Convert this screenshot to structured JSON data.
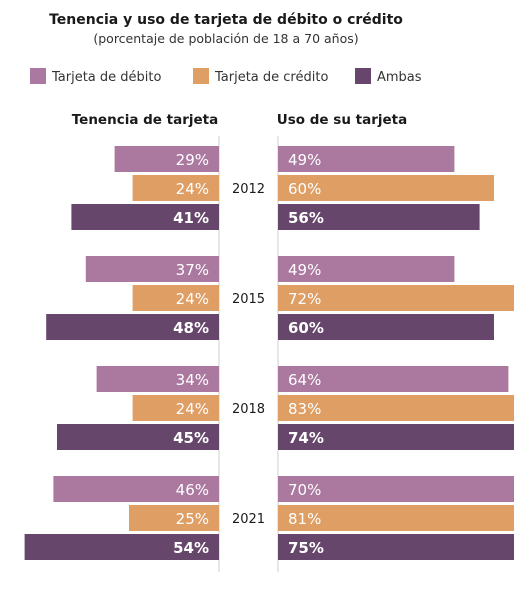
{
  "chart_data": {
    "type": "bar",
    "title": "Tenencia y uso de tarjeta de débito o crédito",
    "subtitle": "(porcentaje de población de 18 a 70 años)",
    "orientation": "horizontal-butterfly",
    "categories": [
      "2012",
      "2015",
      "2018",
      "2021"
    ],
    "panels": [
      {
        "key": "tenencia",
        "title": "Tenencia de tarjeta",
        "direction": "left",
        "xlim": [
          0,
          100
        ]
      },
      {
        "key": "uso",
        "title": "Uso de su tarjeta",
        "direction": "right",
        "xlim": [
          0,
          100
        ]
      }
    ],
    "series": [
      {
        "name": "Tarjeta de débito",
        "color": "#ab789f",
        "label_color": "#ffffff",
        "label_bold": false,
        "tenencia": [
          29,
          37,
          34,
          46
        ],
        "uso": [
          49,
          49,
          64,
          70
        ],
        "tenencia_labels": [
          "29%",
          "37%",
          "34%",
          "46%"
        ],
        "uso_labels": [
          "49%",
          "49%",
          "64%",
          "70%"
        ]
      },
      {
        "name": "Tarjeta de crédito",
        "color": "#de9e64",
        "label_color": "#ffffff",
        "label_bold": false,
        "tenencia": [
          24,
          24,
          24,
          25
        ],
        "uso": [
          60,
          72,
          83,
          81
        ],
        "tenencia_labels": [
          "24%",
          "24%",
          "24%",
          "25%"
        ],
        "uso_labels": [
          "60%",
          "72%",
          "83%",
          "81%"
        ]
      },
      {
        "name": "Ambas",
        "color": "#67466b",
        "label_color": "#ffffff",
        "label_bold": true,
        "tenencia": [
          41,
          48,
          45,
          54
        ],
        "uso": [
          56,
          60,
          74,
          75
        ],
        "tenencia_labels": [
          "41%",
          "48%",
          "45%",
          "54%"
        ],
        "uso_labels": [
          "56%",
          "60%",
          "74%",
          "75%"
        ]
      }
    ],
    "legend_position": "top-left",
    "grid": false
  }
}
